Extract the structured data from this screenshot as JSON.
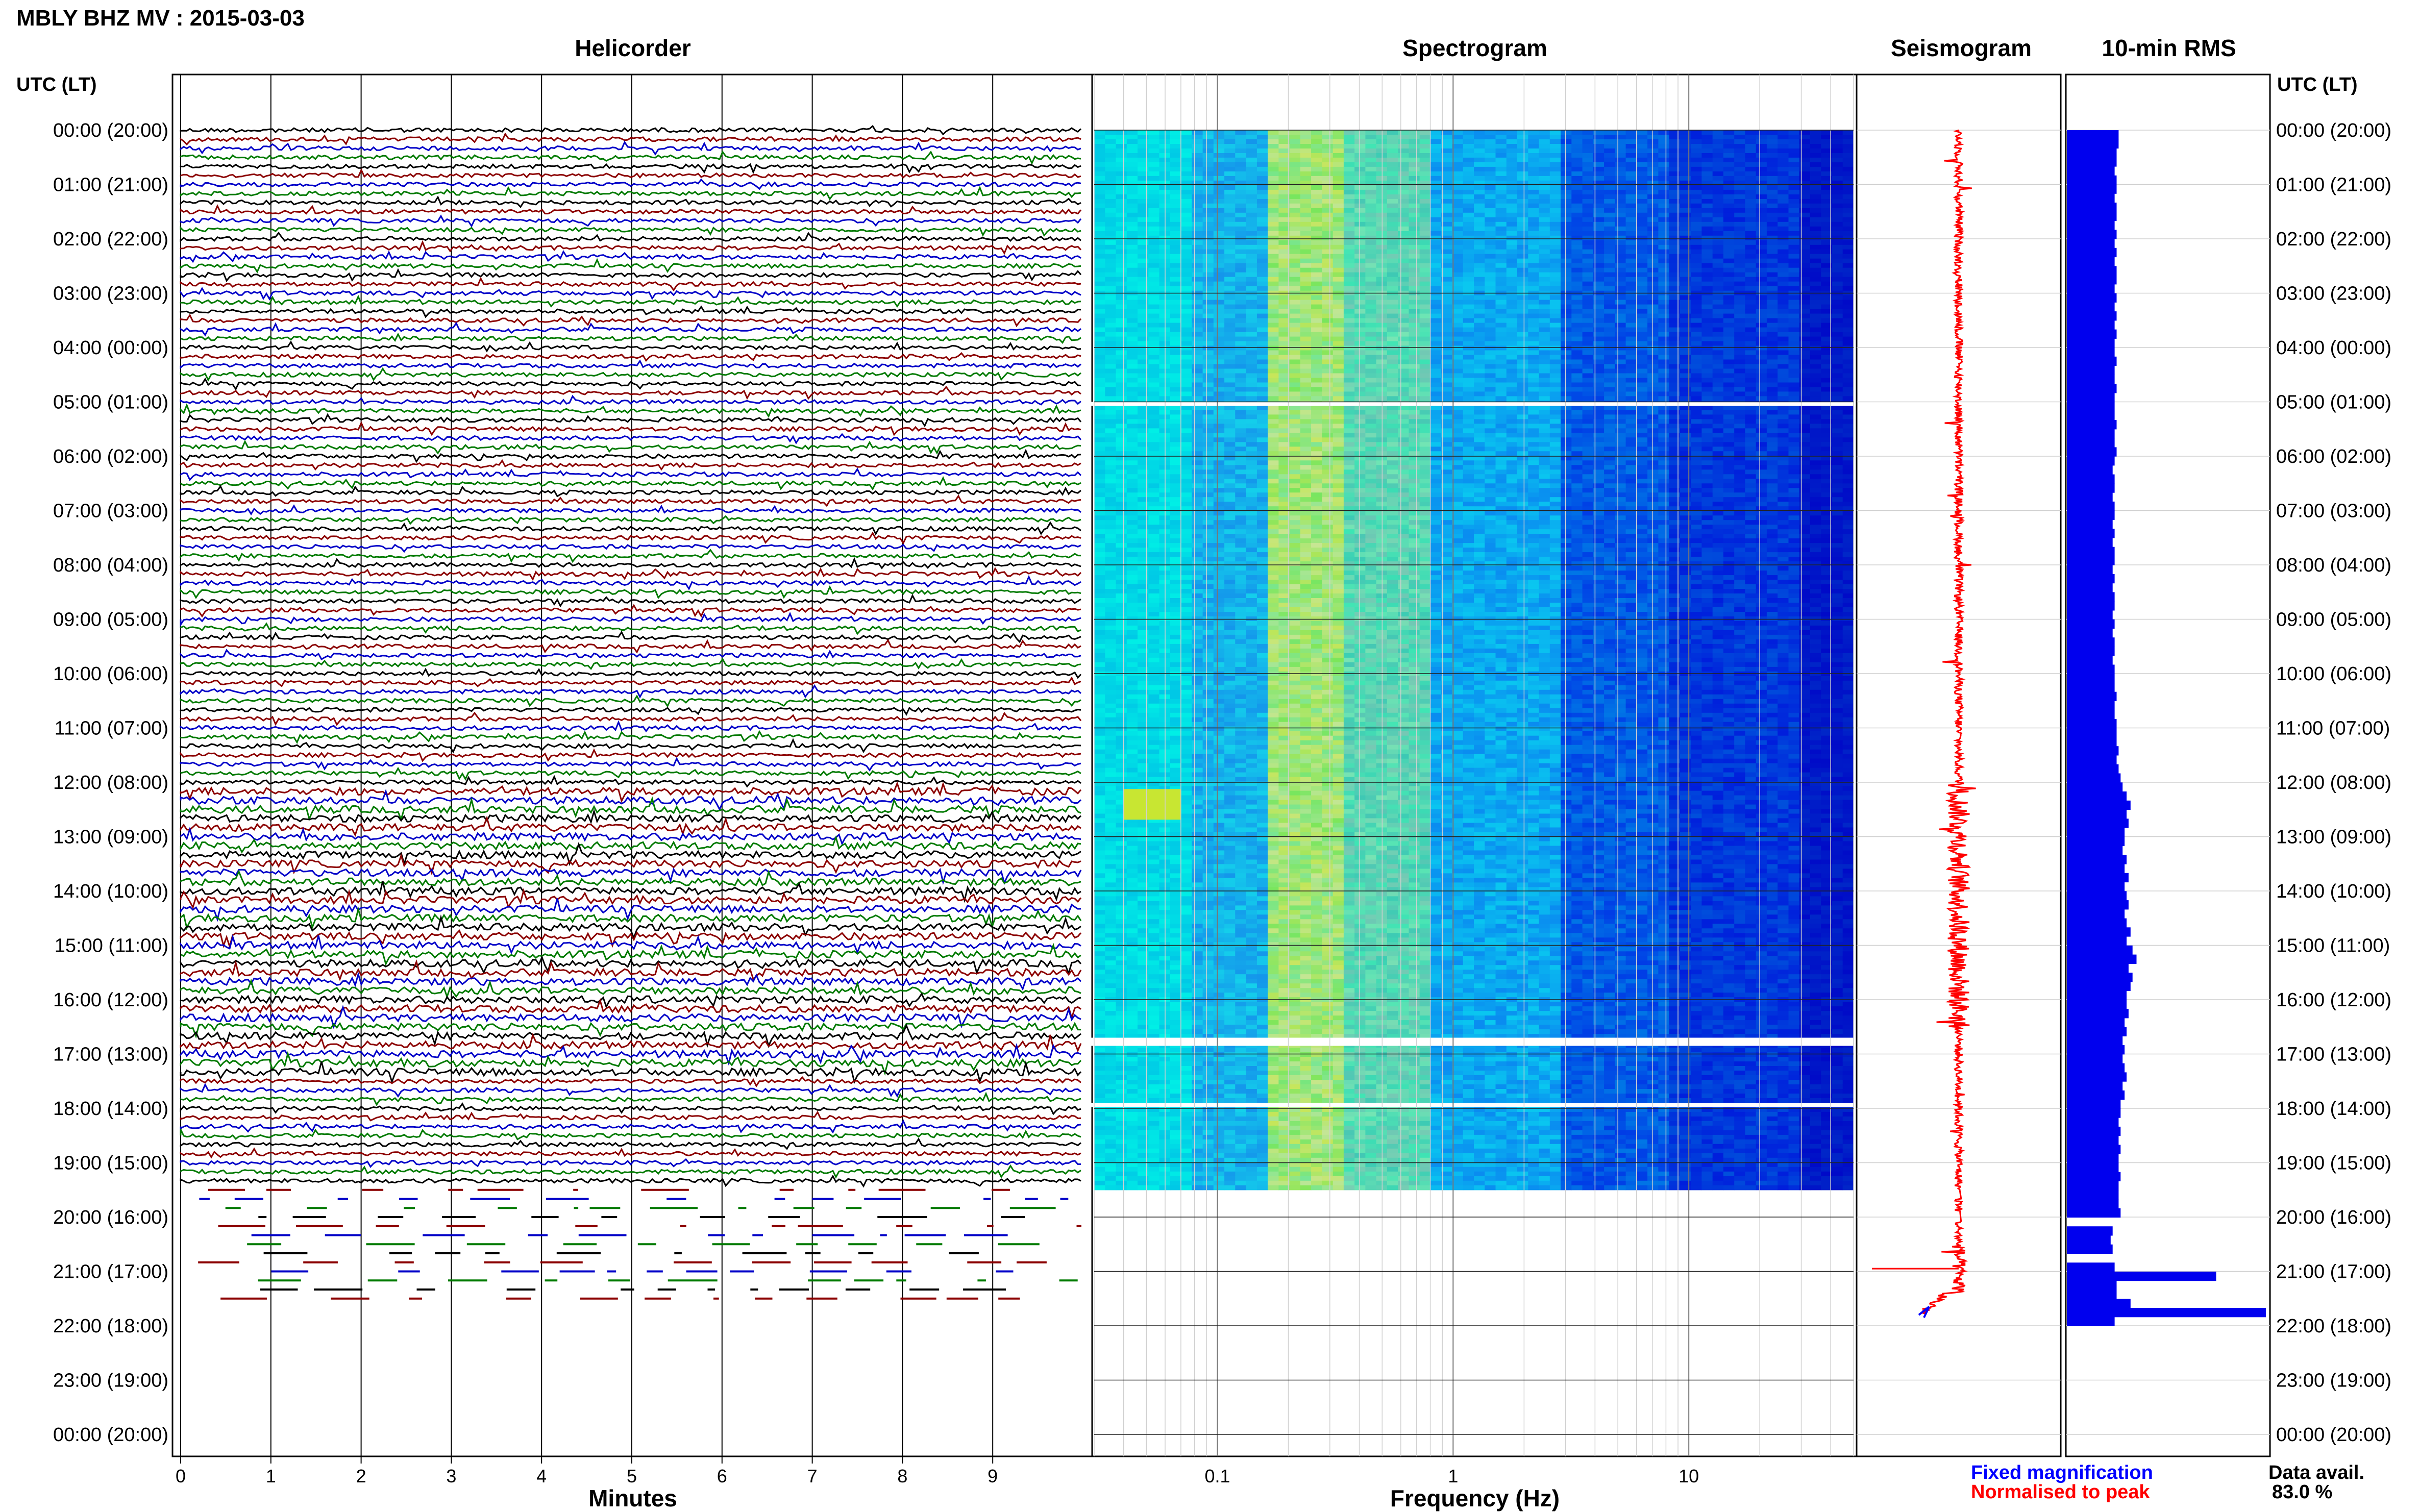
{
  "header": {
    "station_title": "MBLY BHZ MV : 2015-03-03",
    "left_axis_title": "UTC (LT)",
    "right_axis_title": "UTC (LT)"
  },
  "panels": {
    "helicorder": "Helicorder",
    "spectrogram": "Spectrogram",
    "seismogram": "Seismogram",
    "rms": "10-min RMS"
  },
  "time_labels": [
    "00:00 (20:00)",
    "01:00 (21:00)",
    "02:00 (22:00)",
    "03:00 (23:00)",
    "04:00 (00:00)",
    "05:00 (01:00)",
    "06:00 (02:00)",
    "07:00 (03:00)",
    "08:00 (04:00)",
    "09:00 (05:00)",
    "10:00 (06:00)",
    "11:00 (07:00)",
    "12:00 (08:00)",
    "13:00 (09:00)",
    "14:00 (10:00)",
    "15:00 (11:00)",
    "16:00 (12:00)",
    "17:00 (13:00)",
    "18:00 (14:00)",
    "19:00 (15:00)",
    "20:00 (16:00)",
    "21:00 (17:00)",
    "22:00 (18:00)",
    "23:00 (19:00)",
    "00:00 (20:00)"
  ],
  "footer": {
    "fixed_magnification": "Fixed magnification",
    "normalised_to_peak": "Normalised to peak",
    "data_avail_label": "Data avail.",
    "data_avail_value": "83.0 %"
  },
  "colors": {
    "trace_cycle": [
      "#000000",
      "#8b0000",
      "#0000c8",
      "#007a00"
    ],
    "fixed": "#0000ff",
    "normalised": "#ff0000",
    "rms_bar": "#0000ee"
  },
  "chart_data": [
    {
      "type": "line",
      "panel": "Helicorder",
      "xlabel": "Minutes",
      "x_ticks": [
        0,
        1,
        2,
        3,
        4,
        5,
        6,
        7,
        8,
        9
      ],
      "xlim": [
        0,
        10
      ],
      "ylim_hours": [
        0,
        24
      ],
      "line_minutes": 10,
      "data_until_hour": 21.8,
      "continuous_until_hour": 19.5
    },
    {
      "type": "heatmap",
      "panel": "Spectrogram",
      "xlabel": "Frequency (Hz)",
      "x_scale": "log",
      "x_ticks": [
        0.1,
        1,
        10
      ],
      "xlim": [
        0.03,
        50
      ],
      "ylim_hours": [
        0,
        24
      ],
      "data_until_hour": 19.5,
      "gaps_hours": [
        [
          5.0,
          5.05
        ],
        [
          16.7,
          16.85
        ],
        [
          17.9,
          17.97
        ]
      ],
      "bright_band_hz": [
        0.16,
        0.8
      ],
      "event": {
        "hour": 12.2,
        "freq_hz": [
          0.04,
          0.07
        ]
      }
    },
    {
      "type": "line",
      "panel": "Seismogram",
      "series": [
        {
          "name": "Fixed magnification"
        },
        {
          "name": "Normalised to peak"
        }
      ],
      "ylim_hours": [
        0,
        24
      ],
      "data_until_hour": 21.8
    },
    {
      "type": "bar",
      "panel": "10-min RMS",
      "ylim_hours": [
        0,
        24
      ],
      "bin_hours": 0.1667,
      "values": [
        0.26,
        0.26,
        0.25,
        0.25,
        0.24,
        0.25,
        0.25,
        0.24,
        0.25,
        0.25,
        0.24,
        0.25,
        0.24,
        0.25,
        0.24,
        0.25,
        0.25,
        0.24,
        0.25,
        0.24,
        0.25,
        0.24,
        0.25,
        0.24,
        0.24,
        0.25,
        0.24,
        0.24,
        0.25,
        0.24,
        0.24,
        0.24,
        0.25,
        0.24,
        0.24,
        0.25,
        0.24,
        0.23,
        0.24,
        0.24,
        0.23,
        0.24,
        0.24,
        0.23,
        0.24,
        0.23,
        0.24,
        0.24,
        0.23,
        0.24,
        0.23,
        0.24,
        0.24,
        0.23,
        0.24,
        0.23,
        0.24,
        0.24,
        0.23,
        0.24,
        0.24,
        0.24,
        0.25,
        0.24,
        0.24,
        0.25,
        0.25,
        0.25,
        0.26,
        0.25,
        0.26,
        0.27,
        0.28,
        0.3,
        0.32,
        0.3,
        0.31,
        0.29,
        0.29,
        0.28,
        0.3,
        0.29,
        0.31,
        0.29,
        0.3,
        0.31,
        0.29,
        0.3,
        0.32,
        0.3,
        0.33,
        0.35,
        0.31,
        0.33,
        0.32,
        0.3,
        0.3,
        0.31,
        0.29,
        0.3,
        0.28,
        0.29,
        0.28,
        0.29,
        0.3,
        0.28,
        0.29,
        0.27,
        0.27,
        0.26,
        0.27,
        0.26,
        0.27,
        0.26,
        0.26,
        0.27,
        0.26,
        0.26,
        0.26,
        0.27,
        null,
        0.23,
        0.22,
        0.23,
        null,
        0.24,
        0.75,
        0.25,
        0.25,
        0.32,
        1.0,
        0.24
      ],
      "data_until_hour": 22.0
    }
  ]
}
